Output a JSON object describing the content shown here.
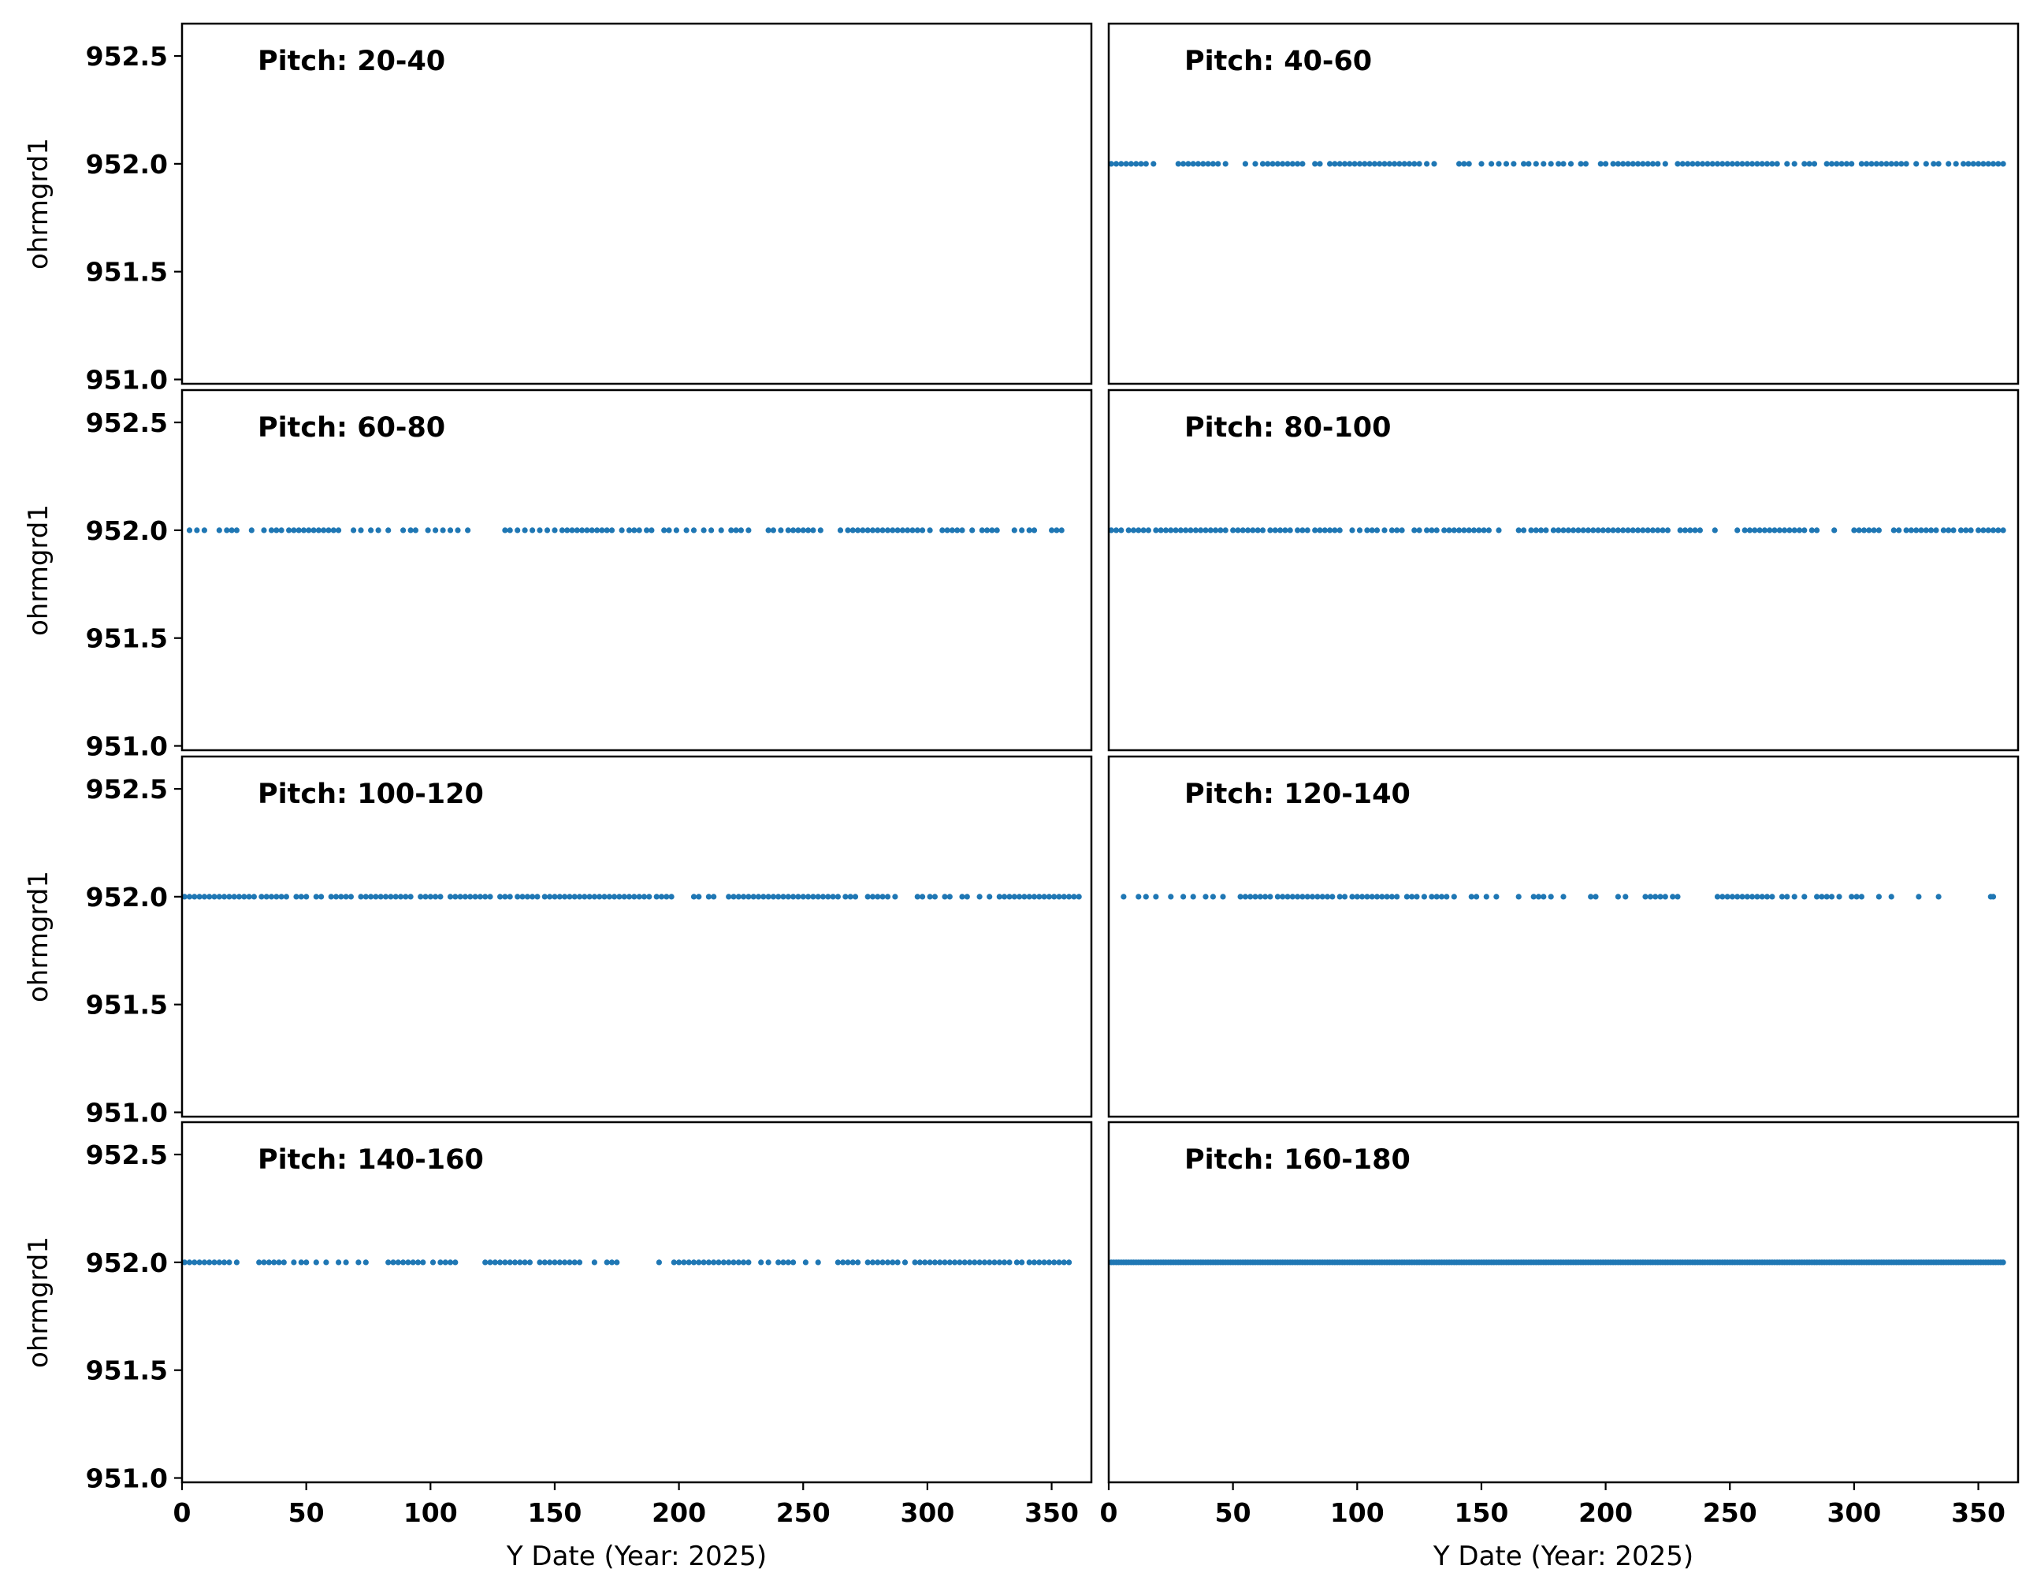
{
  "chart_data": {
    "type": "scatter",
    "layout": "4x2 small multiples, shared x and y axes",
    "xlabel": "Y Date (Year: 2025)",
    "ylabel": "ohrmgrd1",
    "xlim": [
      0,
      366
    ],
    "ylim": [
      950.98,
      952.65
    ],
    "xticks": [
      0,
      50,
      100,
      150,
      200,
      250,
      300,
      350
    ],
    "yticks": [
      951.0,
      951.5,
      952.0,
      952.5
    ],
    "grid": false,
    "marker_color": "#1f77b4",
    "panels": [
      {
        "title": "Pitch: 20-40",
        "y": 952.0,
        "x": []
      },
      {
        "title": "Pitch: 40-60",
        "y": 952.0,
        "x": [
          1,
          3,
          5,
          7,
          9,
          11,
          13,
          15,
          18,
          28,
          30,
          32,
          34,
          36,
          38,
          40,
          42,
          44,
          47,
          55,
          59,
          62,
          64,
          66,
          68,
          70,
          72,
          74,
          76,
          78,
          83,
          85,
          89,
          91,
          93,
          95,
          97,
          99,
          101,
          103,
          105,
          107,
          109,
          111,
          113,
          115,
          117,
          119,
          121,
          123,
          125,
          128,
          131,
          141,
          143,
          145,
          150,
          154,
          157,
          160,
          163,
          167,
          169,
          172,
          175,
          178,
          181,
          183,
          186,
          190,
          192,
          198,
          200,
          203,
          205,
          207,
          209,
          211,
          213,
          215,
          217,
          219,
          221,
          224,
          229,
          231,
          233,
          235,
          237,
          239,
          241,
          243,
          245,
          247,
          249,
          251,
          253,
          255,
          257,
          259,
          261,
          263,
          265,
          267,
          269,
          273,
          276,
          280,
          282,
          284,
          289,
          291,
          293,
          295,
          297,
          299,
          303,
          305,
          307,
          309,
          311,
          313,
          315,
          317,
          319,
          321,
          325,
          329,
          332,
          334,
          338,
          341,
          344,
          346,
          348,
          350,
          352,
          354,
          356,
          358,
          360
        ]
      },
      {
        "title": "Pitch: 60-80",
        "y": 952.0,
        "x": [
          3,
          6,
          9,
          15,
          18,
          20,
          22,
          28,
          33,
          36,
          38,
          40,
          43,
          45,
          47,
          49,
          51,
          53,
          55,
          57,
          59,
          61,
          63,
          69,
          72,
          76,
          79,
          83,
          89,
          92,
          94,
          99,
          102,
          105,
          108,
          111,
          115,
          130,
          132,
          135,
          138,
          141,
          144,
          147,
          150,
          153,
          155,
          157,
          159,
          161,
          163,
          165,
          167,
          169,
          171,
          173,
          177,
          180,
          182,
          184,
          187,
          189,
          194,
          196,
          199,
          203,
          206,
          210,
          213,
          217,
          221,
          223,
          225,
          228,
          236,
          238,
          241,
          244,
          246,
          248,
          250,
          252,
          254,
          257,
          265,
          268,
          270,
          272,
          274,
          276,
          278,
          280,
          282,
          284,
          286,
          288,
          290,
          292,
          294,
          296,
          298,
          301,
          306,
          308,
          310,
          312,
          314,
          318,
          322,
          324,
          326,
          328,
          335,
          338,
          341,
          343,
          350,
          352,
          354
        ]
      },
      {
        "title": "Pitch: 80-100",
        "y": 952.0,
        "x": [
          1,
          3,
          5,
          8,
          10,
          12,
          14,
          16,
          19,
          21,
          23,
          25,
          27,
          29,
          31,
          33,
          35,
          37,
          39,
          41,
          43,
          45,
          47,
          50,
          52,
          54,
          56,
          58,
          60,
          62,
          65,
          67,
          69,
          71,
          73,
          76,
          78,
          80,
          83,
          85,
          87,
          89,
          91,
          93,
          98,
          101,
          104,
          106,
          108,
          111,
          114,
          116,
          118,
          123,
          125,
          128,
          130,
          132,
          135,
          137,
          139,
          141,
          143,
          145,
          147,
          149,
          151,
          153,
          157,
          165,
          167,
          170,
          172,
          174,
          176,
          179,
          181,
          183,
          185,
          187,
          189,
          191,
          193,
          195,
          197,
          199,
          201,
          203,
          205,
          207,
          209,
          211,
          213,
          215,
          217,
          219,
          221,
          223,
          225,
          230,
          232,
          234,
          236,
          238,
          244,
          253,
          256,
          258,
          260,
          262,
          264,
          266,
          268,
          270,
          272,
          274,
          276,
          278,
          280,
          283,
          285,
          292,
          300,
          302,
          304,
          306,
          308,
          310,
          316,
          318,
          321,
          323,
          325,
          327,
          329,
          331,
          333,
          336,
          338,
          340,
          343,
          345,
          347,
          350,
          352,
          354,
          356,
          358,
          360
        ]
      },
      {
        "title": "Pitch: 100-120",
        "y": 952.0,
        "x": [
          1,
          3,
          5,
          7,
          9,
          11,
          13,
          15,
          17,
          19,
          21,
          23,
          25,
          27,
          29,
          32,
          34,
          36,
          38,
          40,
          42,
          46,
          48,
          50,
          54,
          56,
          60,
          62,
          64,
          66,
          68,
          72,
          74,
          76,
          78,
          80,
          82,
          84,
          86,
          88,
          90,
          92,
          96,
          98,
          100,
          102,
          104,
          108,
          110,
          112,
          114,
          116,
          118,
          120,
          122,
          124,
          128,
          130,
          132,
          135,
          137,
          139,
          141,
          143,
          146,
          148,
          150,
          152,
          154,
          156,
          158,
          160,
          162,
          164,
          166,
          168,
          170,
          172,
          174,
          176,
          178,
          180,
          182,
          184,
          186,
          188,
          191,
          193,
          195,
          197,
          206,
          208,
          212,
          214,
          220,
          222,
          224,
          226,
          228,
          230,
          232,
          234,
          236,
          238,
          240,
          242,
          244,
          246,
          248,
          250,
          252,
          254,
          256,
          258,
          260,
          262,
          264,
          267,
          269,
          271,
          276,
          278,
          280,
          282,
          284,
          287,
          296,
          298,
          301,
          303,
          307,
          309,
          314,
          316,
          321,
          325,
          329,
          331,
          333,
          335,
          337,
          339,
          341,
          343,
          345,
          347,
          349,
          351,
          353,
          355,
          357,
          359,
          361
        ]
      },
      {
        "title": "Pitch: 120-140",
        "y": 952.0,
        "x": [
          6,
          12,
          15,
          19,
          25,
          30,
          34,
          39,
          42,
          46,
          53,
          55,
          57,
          59,
          61,
          63,
          65,
          68,
          70,
          72,
          74,
          76,
          78,
          80,
          82,
          84,
          86,
          88,
          90,
          93,
          95,
          98,
          100,
          102,
          104,
          106,
          108,
          110,
          112,
          114,
          116,
          120,
          122,
          124,
          127,
          130,
          132,
          134,
          136,
          139,
          146,
          148,
          152,
          156,
          165,
          171,
          173,
          175,
          178,
          183,
          194,
          196,
          205,
          208,
          216,
          218,
          220,
          222,
          224,
          227,
          229,
          245,
          247,
          249,
          251,
          253,
          255,
          257,
          259,
          261,
          263,
          265,
          267,
          271,
          273,
          276,
          280,
          285,
          287,
          289,
          291,
          294,
          299,
          301,
          303,
          310,
          315,
          326,
          334,
          355,
          356
        ]
      },
      {
        "title": "Pitch: 140-160",
        "y": 952.0,
        "x": [
          1,
          3,
          5,
          7,
          9,
          11,
          13,
          15,
          17,
          19,
          22,
          31,
          33,
          35,
          37,
          39,
          41,
          45,
          48,
          50,
          54,
          58,
          63,
          66,
          71,
          74,
          83,
          85,
          87,
          89,
          91,
          93,
          95,
          97,
          101,
          104,
          106,
          108,
          110,
          122,
          124,
          126,
          128,
          130,
          132,
          134,
          136,
          138,
          140,
          144,
          146,
          148,
          150,
          152,
          154,
          156,
          158,
          160,
          166,
          171,
          173,
          175,
          192,
          198,
          200,
          202,
          204,
          206,
          208,
          210,
          212,
          214,
          216,
          218,
          220,
          222,
          224,
          226,
          228,
          233,
          236,
          240,
          242,
          244,
          246,
          251,
          256,
          264,
          266,
          268,
          270,
          272,
          276,
          278,
          280,
          282,
          284,
          286,
          288,
          291,
          295,
          297,
          299,
          301,
          303,
          305,
          307,
          309,
          311,
          313,
          315,
          317,
          319,
          321,
          323,
          325,
          327,
          329,
          331,
          333,
          336,
          338,
          341,
          343,
          345,
          347,
          349,
          351,
          353,
          355,
          357
        ]
      },
      {
        "title": "Pitch: 160-180",
        "y": 952.0,
        "x": [
          1,
          2,
          3,
          4,
          5,
          6,
          7,
          8,
          9,
          10,
          11,
          12,
          13,
          14,
          15,
          16,
          17,
          18,
          19,
          20,
          21,
          22,
          23,
          24,
          25,
          26,
          27,
          28,
          29,
          30,
          31,
          32,
          33,
          34,
          35,
          36,
          37,
          38,
          39,
          40,
          41,
          42,
          43,
          44,
          45,
          46,
          47,
          48,
          49,
          50,
          51,
          52,
          53,
          54,
          55,
          56,
          57,
          58,
          59,
          60,
          61,
          62,
          63,
          64,
          65,
          66,
          67,
          68,
          69,
          70,
          71,
          72,
          73,
          74,
          75,
          76,
          77,
          78,
          79,
          80,
          81,
          82,
          83,
          84,
          85,
          86,
          87,
          88,
          89,
          90,
          91,
          92,
          93,
          94,
          95,
          96,
          97,
          98,
          99,
          100,
          101,
          102,
          103,
          104,
          105,
          106,
          107,
          108,
          109,
          110,
          111,
          112,
          113,
          114,
          115,
          116,
          117,
          118,
          119,
          120,
          121,
          122,
          123,
          124,
          125,
          126,
          127,
          128,
          129,
          130,
          131,
          132,
          133,
          134,
          135,
          136,
          137,
          138,
          139,
          140,
          141,
          142,
          143,
          144,
          145,
          146,
          147,
          148,
          149,
          150,
          151,
          152,
          153,
          154,
          155,
          156,
          157,
          158,
          159,
          160,
          161,
          162,
          163,
          164,
          165,
          166,
          167,
          168,
          169,
          170,
          171,
          172,
          173,
          174,
          175,
          176,
          177,
          178,
          179,
          180,
          181,
          182,
          183,
          184,
          185,
          186,
          187,
          188,
          189,
          190,
          191,
          192,
          193,
          194,
          195,
          196,
          197,
          198,
          199,
          200,
          201,
          202,
          203,
          204,
          205,
          206,
          207,
          208,
          209,
          210,
          211,
          212,
          213,
          214,
          215,
          216,
          217,
          218,
          219,
          220,
          221,
          222,
          223,
          224,
          225,
          226,
          227,
          228,
          229,
          230,
          231,
          232,
          233,
          234,
          235,
          236,
          237,
          238,
          239,
          240,
          241,
          242,
          243,
          244,
          245,
          246,
          247,
          248,
          249,
          250,
          251,
          252,
          253,
          254,
          255,
          256,
          257,
          258,
          259,
          260,
          261,
          262,
          263,
          264,
          265,
          266,
          267,
          268,
          269,
          270,
          271,
          272,
          273,
          274,
          275,
          276,
          277,
          278,
          279,
          280,
          281,
          282,
          283,
          284,
          285,
          286,
          287,
          288,
          289,
          290,
          291,
          292,
          293,
          294,
          295,
          296,
          297,
          298,
          299,
          300,
          301,
          302,
          303,
          304,
          305,
          306,
          307,
          308,
          309,
          310,
          311,
          312,
          313,
          314,
          315,
          316,
          317,
          318,
          319,
          320,
          321,
          322,
          323,
          324,
          325,
          326,
          327,
          328,
          329,
          330,
          331,
          332,
          333,
          334,
          335,
          336,
          337,
          338,
          339,
          340,
          341,
          342,
          343,
          344,
          345,
          346,
          347,
          348,
          349,
          350,
          351,
          352,
          353,
          354,
          355,
          356,
          357,
          358,
          359,
          360
        ]
      }
    ]
  }
}
